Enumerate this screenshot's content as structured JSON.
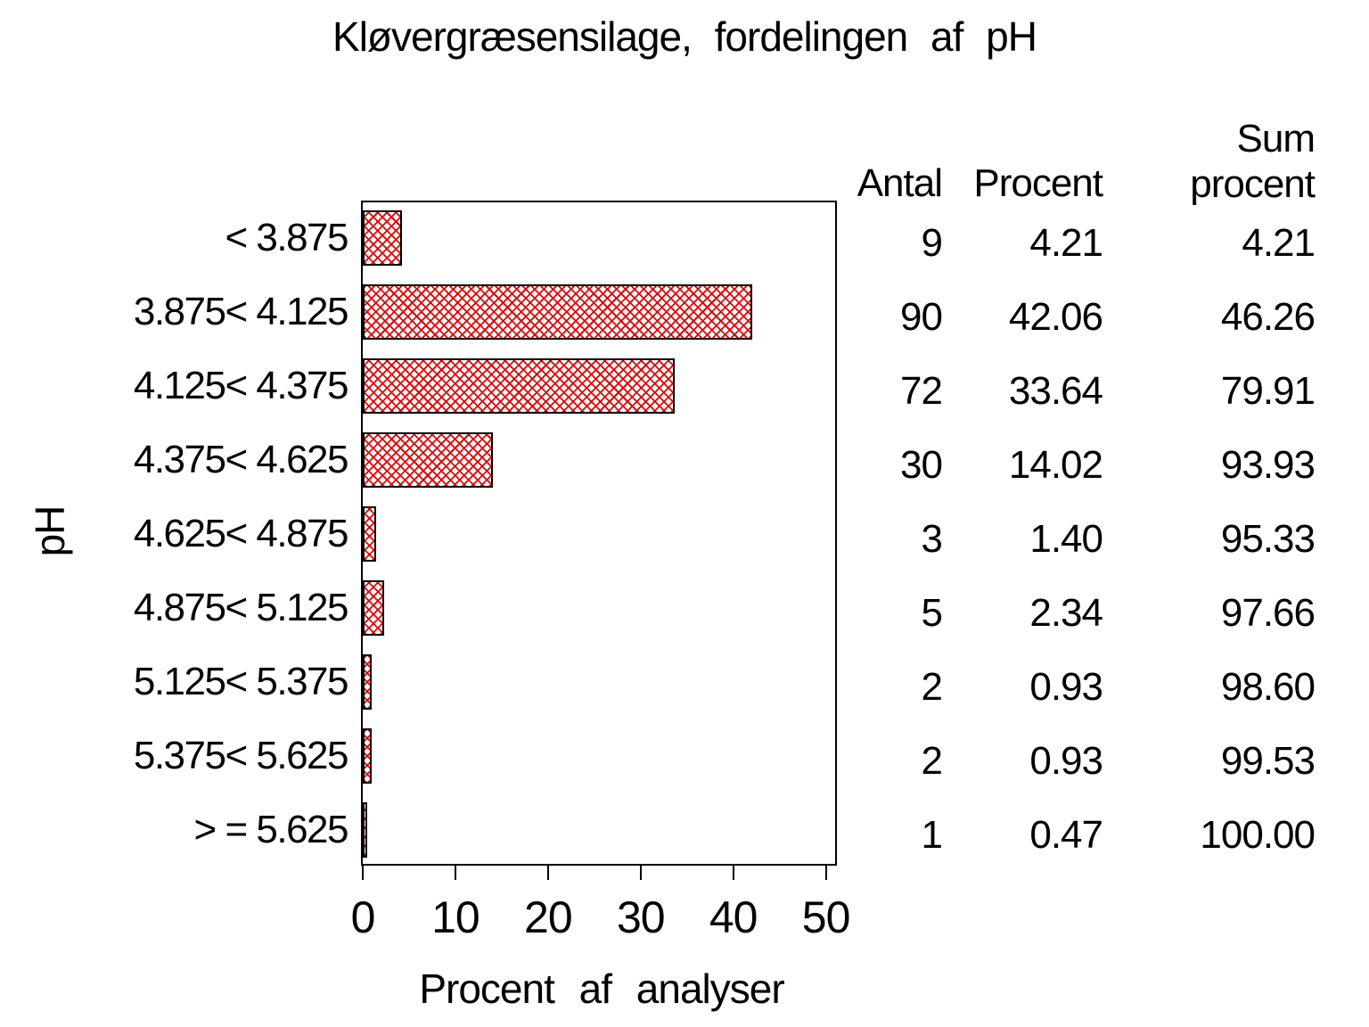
{
  "title": "Kløvergræsensilage, fordelingen af pH",
  "chart_data": {
    "type": "bar",
    "orientation": "horizontal",
    "title": "Kløvergræsensilage, fordelingen af pH",
    "categories": [
      "< 3.875",
      "3.875< 4.125",
      "4.125< 4.375",
      "4.375< 4.625",
      "4.625< 4.875",
      "4.875< 5.125",
      "5.125< 5.375",
      "5.375< 5.625",
      "> = 5.625"
    ],
    "values": [
      4.21,
      42.06,
      33.64,
      14.02,
      1.4,
      2.34,
      0.93,
      0.93,
      0.47
    ],
    "counts": [
      9,
      90,
      72,
      30,
      3,
      5,
      2,
      2,
      1
    ],
    "cum_percent": [
      4.21,
      46.26,
      79.91,
      93.93,
      95.33,
      97.66,
      98.6,
      99.53,
      100.0
    ],
    "xlabel": "Procent af analyser",
    "ylabel": "pH",
    "xlim": [
      0,
      51
    ],
    "xticks": [
      0,
      10,
      20,
      30,
      40,
      50
    ],
    "grid": false,
    "bar_color": "#e60000",
    "bar_pattern": "crosshatch",
    "bar_border_color": "#000000"
  },
  "table": {
    "headers": {
      "antal": "Antal",
      "procent": "Procent",
      "sum_line1": "Sum",
      "sum_line2": "procent"
    },
    "rows": [
      {
        "antal": "9",
        "procent": "4.21",
        "sum": "4.21"
      },
      {
        "antal": "90",
        "procent": "42.06",
        "sum": "46.26"
      },
      {
        "antal": "72",
        "procent": "33.64",
        "sum": "79.91"
      },
      {
        "antal": "30",
        "procent": "14.02",
        "sum": "93.93"
      },
      {
        "antal": "3",
        "procent": "1.40",
        "sum": "95.33"
      },
      {
        "antal": "5",
        "procent": "2.34",
        "sum": "97.66"
      },
      {
        "antal": "2",
        "procent": "0.93",
        "sum": "98.60"
      },
      {
        "antal": "2",
        "procent": "0.93",
        "sum": "99.53"
      },
      {
        "antal": "1",
        "procent": "0.47",
        "sum": "100.00"
      }
    ]
  }
}
